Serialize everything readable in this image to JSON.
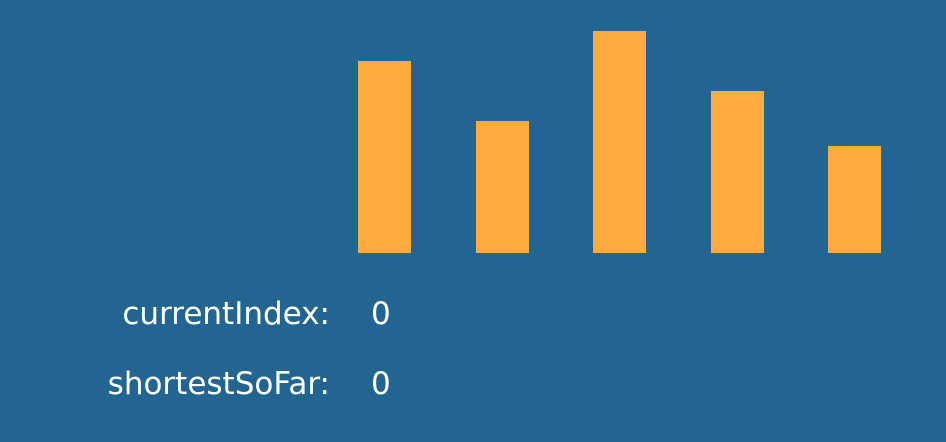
{
  "colors": {
    "background": "#236591",
    "bar": "#ffab40",
    "text": "#ffffff"
  },
  "bars": {
    "values": [
      192,
      132,
      222,
      162,
      107
    ]
  },
  "variables": {
    "current_index": {
      "label": "currentIndex:",
      "value": "0"
    },
    "shortest_so_far": {
      "label": "shortestSoFar:",
      "value": "0"
    }
  }
}
